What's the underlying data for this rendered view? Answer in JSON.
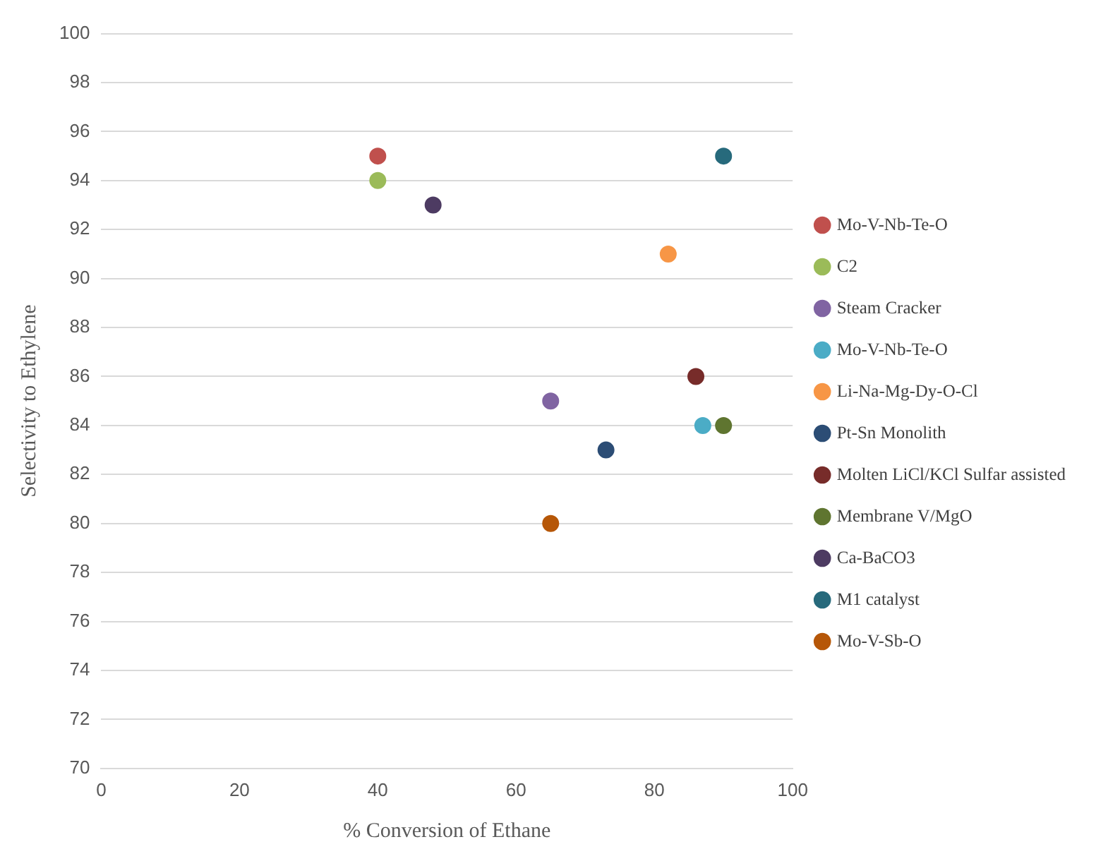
{
  "chart_data": {
    "type": "scatter",
    "xlabel": "% Conversion of Ethane",
    "ylabel": "Selectivity to Ethylene",
    "xlim": [
      0,
      100
    ],
    "xticks": [
      0,
      20,
      40,
      60,
      80,
      100
    ],
    "ylim": [
      70,
      100
    ],
    "yticks": [
      70,
      72,
      74,
      76,
      78,
      80,
      82,
      84,
      86,
      88,
      90,
      92,
      94,
      96,
      98,
      100
    ],
    "grid": "y",
    "legend": "right",
    "marker": "circle",
    "series": [
      {
        "name": "Mo-V-Nb-Te-O",
        "color": "#c0504d",
        "x": [
          40
        ],
        "values": [
          95
        ]
      },
      {
        "name": "C2",
        "color": "#9bbb59",
        "x": [
          40
        ],
        "values": [
          94
        ]
      },
      {
        "name": "Steam Cracker",
        "color": "#8064a2",
        "x": [
          65
        ],
        "values": [
          85
        ]
      },
      {
        "name": "Mo-V-Nb-Te-O",
        "color": "#4bacc6",
        "x": [
          87
        ],
        "values": [
          84
        ]
      },
      {
        "name": "Li-Na-Mg-Dy-O-Cl",
        "color": "#f79646",
        "x": [
          82
        ],
        "values": [
          91
        ]
      },
      {
        "name": "Pt-Sn Monolith",
        "color": "#2c4d75",
        "x": [
          73
        ],
        "values": [
          83
        ]
      },
      {
        "name": "Molten LiCl/KCl Sulfar assisted",
        "color": "#772c2a",
        "x": [
          86
        ],
        "values": [
          86
        ]
      },
      {
        "name": "Membrane V/MgO",
        "color": "#5f7530",
        "x": [
          90
        ],
        "values": [
          84
        ]
      },
      {
        "name": "Ca-BaCO3",
        "color": "#4d3b62",
        "x": [
          48
        ],
        "values": [
          93
        ]
      },
      {
        "name": "M1 catalyst",
        "color": "#276a7c",
        "x": [
          90
        ],
        "values": [
          95
        ]
      },
      {
        "name": "Mo-V-Sb-O",
        "color": "#b65708",
        "x": [
          65
        ],
        "values": [
          80
        ]
      }
    ]
  }
}
